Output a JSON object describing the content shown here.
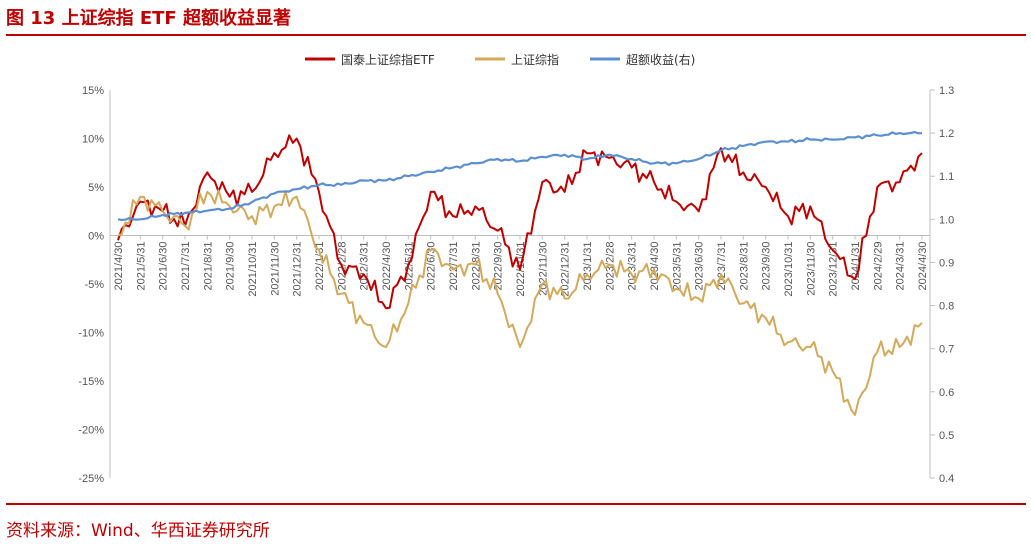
{
  "figure": {
    "title": "图 13 上证综指 ETF 超额收益显著",
    "source": "资料来源：Wind、华西证券研究所"
  },
  "colors": {
    "etf": "#c00000",
    "index": "#d4a95a",
    "excess": "#5b8fd1",
    "accent": "#c00000"
  },
  "chart_data": {
    "type": "line",
    "legend_position": "top-center",
    "grid": false,
    "x": [
      "2021/4/30",
      "2021/5/31",
      "2021/6/30",
      "2021/7/31",
      "2021/8/31",
      "2021/9/30",
      "2021/10/31",
      "2021/11/30",
      "2021/12/31",
      "2022/1/31",
      "2022/2/28",
      "2022/3/31",
      "2022/4/30",
      "2022/5/31",
      "2022/6/30",
      "2022/7/31",
      "2022/8/31",
      "2022/9/30",
      "2022/10/31",
      "2022/11/30",
      "2022/12/31",
      "2023/1/31",
      "2023/2/28",
      "2023/3/31",
      "2023/4/30",
      "2023/5/31",
      "2023/6/30",
      "2023/7/31",
      "2023/8/31",
      "2023/9/30",
      "2023/10/31",
      "2023/11/30",
      "2023/12/31",
      "2024/1/31",
      "2024/2/29",
      "2024/3/31",
      "2024/4/30"
    ],
    "y_left": {
      "ticks": [
        "15%",
        "10%",
        "5%",
        "0%",
        "-5%",
        "-10%",
        "-15%",
        "-20%",
        "-25%"
      ],
      "min": -25,
      "max": 15,
      "unit": "%"
    },
    "y_right": {
      "ticks": [
        "1.3",
        "1.2",
        "1.1",
        "1.0",
        "0.9",
        "0.8",
        "0.7",
        "0.6",
        "0.5",
        "0.4"
      ],
      "min": 0.4,
      "max": 1.3
    },
    "series": [
      {
        "name": "国泰上证综指ETF",
        "axis": "left",
        "color": "#c00000",
        "values": [
          -0.5,
          3.5,
          2.5,
          1.0,
          6.5,
          4.0,
          4.5,
          8.5,
          10.0,
          4.5,
          -3.0,
          -4.0,
          -7.5,
          -3.0,
          4.5,
          2.0,
          3.0,
          0.5,
          -3.5,
          5.5,
          4.5,
          8.5,
          8.0,
          7.0,
          5.5,
          3.5,
          2.5,
          9.0,
          6.5,
          5.0,
          2.0,
          3.0,
          -1.5,
          -4.5,
          5.0,
          5.5,
          8.5
        ]
      },
      {
        "name": "上证综指",
        "axis": "left",
        "color": "#d4a95a",
        "values": [
          0.0,
          4.0,
          2.5,
          1.0,
          4.5,
          3.0,
          2.0,
          3.0,
          4.0,
          -1.5,
          -6.0,
          -9.0,
          -11.5,
          -7.0,
          -1.5,
          -3.5,
          -3.0,
          -6.0,
          -11.5,
          -5.0,
          -6.5,
          -4.0,
          -3.0,
          -4.0,
          -3.5,
          -5.5,
          -6.5,
          -4.0,
          -7.0,
          -8.5,
          -11.0,
          -11.5,
          -14.0,
          -18.5,
          -12.0,
          -11.5,
          -9.0
        ]
      },
      {
        "name": "超额收益(右)",
        "axis": "right",
        "color": "#5b8fd1",
        "values": [
          1.0,
          1.0,
          1.01,
          1.015,
          1.02,
          1.025,
          1.04,
          1.06,
          1.07,
          1.08,
          1.08,
          1.09,
          1.09,
          1.1,
          1.11,
          1.12,
          1.13,
          1.14,
          1.135,
          1.145,
          1.15,
          1.14,
          1.15,
          1.14,
          1.13,
          1.13,
          1.14,
          1.16,
          1.17,
          1.18,
          1.18,
          1.185,
          1.185,
          1.19,
          1.195,
          1.2,
          1.2
        ]
      }
    ]
  }
}
